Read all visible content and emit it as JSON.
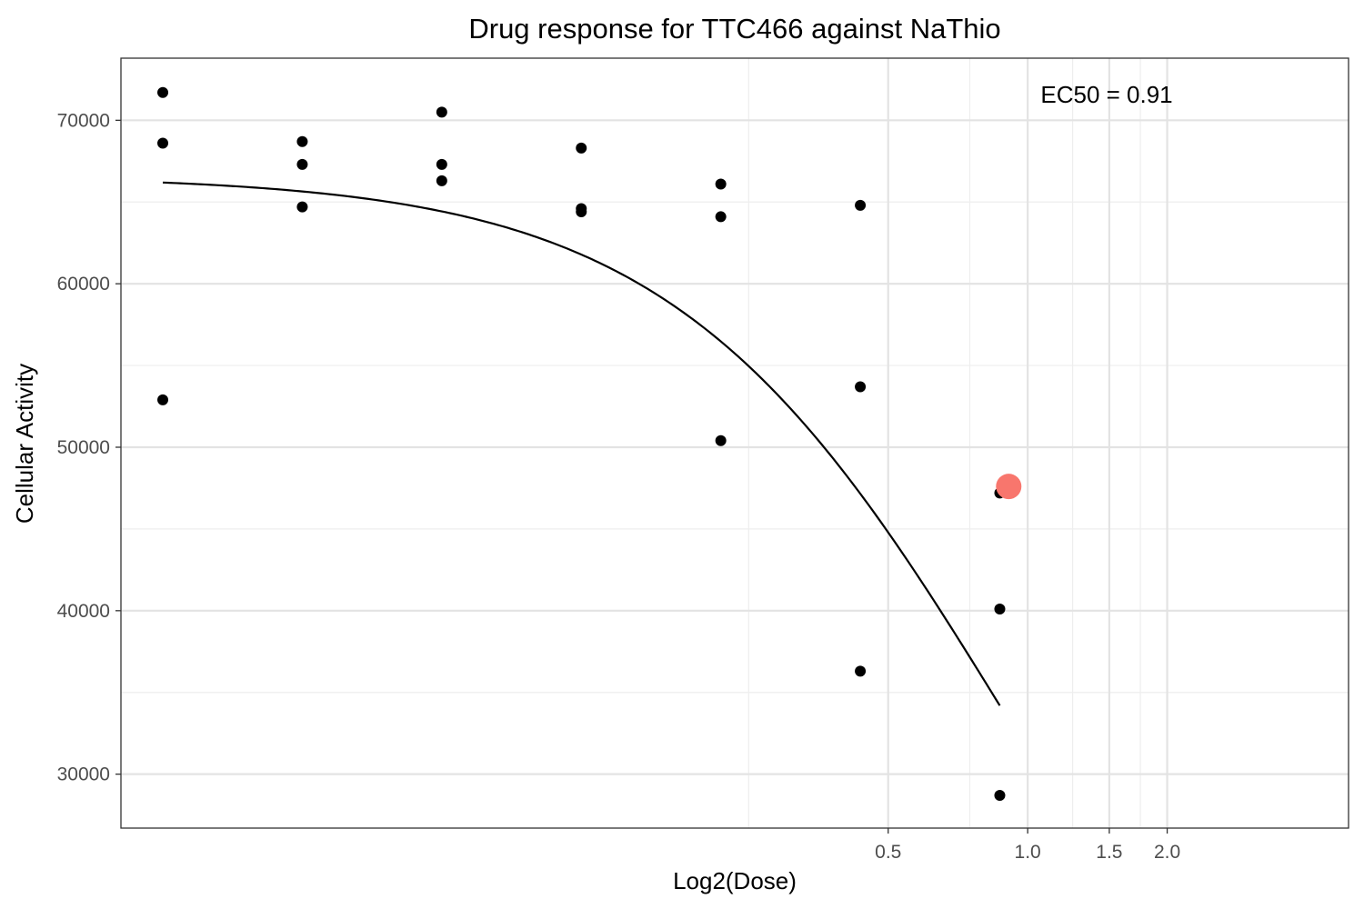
{
  "chart_data": {
    "type": "scatter",
    "title": "Drug response for TTC466 against NaThio",
    "xlabel": "Log2(Dose)",
    "ylabel": "Cellular Activity",
    "x_scale": "log2",
    "xlim": [
      -6.5,
      2.3
    ],
    "ylim": [
      26700,
      73800
    ],
    "x_ticks": [
      0.5,
      1.0,
      1.5,
      2.0
    ],
    "x_tick_labels": [
      "0.5",
      "1.0",
      "1.5",
      "2.0"
    ],
    "y_ticks": [
      30000,
      40000,
      50000,
      60000,
      70000
    ],
    "y_tick_labels": [
      "30000",
      "40000",
      "50000",
      "60000",
      "70000"
    ],
    "grid": true,
    "points": {
      "color": "#000000",
      "x": [
        -6.2,
        -6.2,
        -6.2,
        -5.2,
        -5.2,
        -5.2,
        -4.2,
        -4.2,
        -4.2,
        -3.2,
        -3.2,
        -3.2,
        -2.2,
        -2.2,
        -2.2,
        -1.2,
        -1.2,
        -1.2,
        -0.2,
        -0.2,
        -0.2
      ],
      "y": [
        71700,
        68600,
        52900,
        68700,
        67300,
        64700,
        70500,
        67300,
        66300,
        68300,
        64600,
        64400,
        66100,
        64100,
        50400,
        64800,
        53700,
        36300,
        47200,
        40100,
        28700
      ]
    },
    "fit": {
      "color": "#000000",
      "x_range": [
        -6.2,
        -0.2
      ],
      "top": 66620,
      "bottom": 0,
      "hill": 1.2
    },
    "ec50": {
      "value": 0.91,
      "y": 47600,
      "color": "#f8766d",
      "label": "EC50 = 0.91",
      "label_position": "top-right"
    }
  }
}
